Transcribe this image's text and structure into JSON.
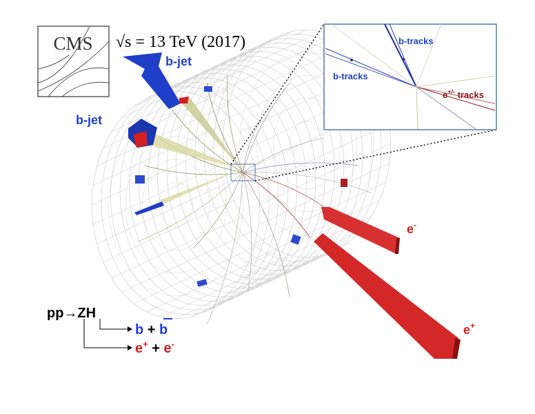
{
  "logo": "CMS",
  "energy": "√s = 13 TeV (2017)",
  "jets": [
    "b-jet",
    "b-jet"
  ],
  "inset": {
    "tracks": [
      "b-tracks",
      "b-tracks"
    ],
    "electron_tracks": {
      "base": "e",
      "sup": "+/-",
      "rest": " tracks"
    }
  },
  "electrons": [
    {
      "base": "e",
      "sup": "-"
    },
    {
      "base": "e",
      "sup": "+"
    }
  ],
  "decay": {
    "process": "pp→ZH",
    "b_branch": {
      "b": "b",
      "plus": " + ",
      "bbar": "b"
    },
    "e_branch": {
      "e1": "e",
      "sup1": "+",
      "plus": " + ",
      "e2": "e",
      "sup2": "-"
    }
  }
}
